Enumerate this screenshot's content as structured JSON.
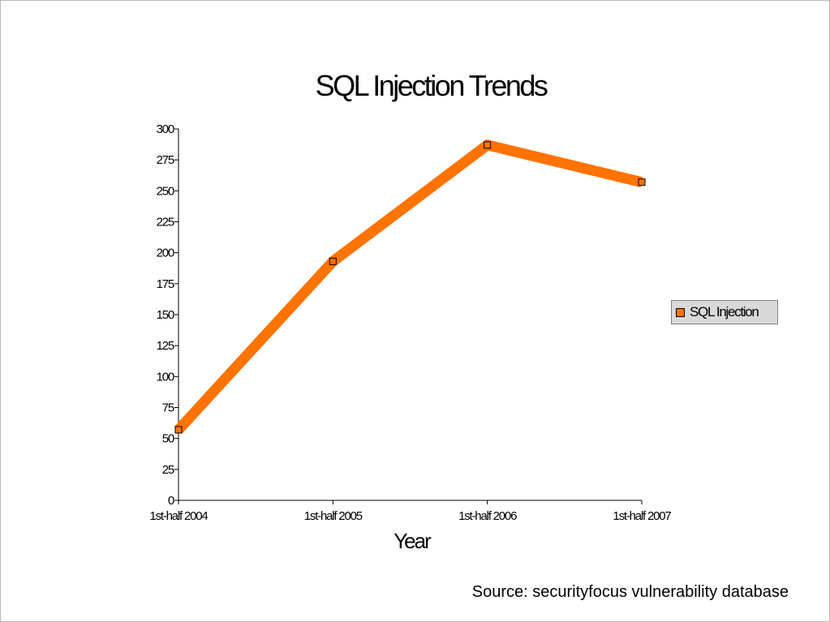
{
  "chart_data": {
    "type": "line",
    "title": "SQL Injection Trends",
    "xlabel": "Year",
    "ylabel": "",
    "categories": [
      "1st-half 2004",
      "1st-half 2005",
      "1st-half 2006",
      "1st-half 2007"
    ],
    "series": [
      {
        "name": "SQL Injection",
        "values": [
          57,
          193,
          287,
          257
        ],
        "color": "#ff7300"
      }
    ],
    "ylim": [
      0,
      300
    ],
    "ytick_step": 25,
    "grid": false,
    "legend_position": "right"
  },
  "footer": {
    "source": "Source: securityfocus vulnerability database"
  }
}
